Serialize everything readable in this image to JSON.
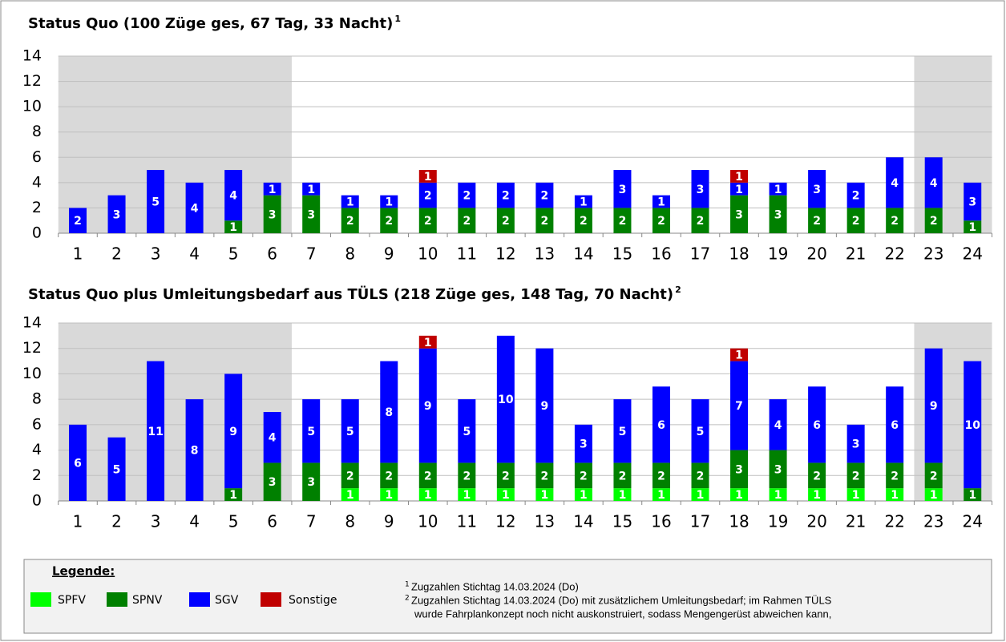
{
  "chart_data": [
    {
      "type": "bar",
      "stacked": true,
      "title": "Status Quo (100 Züge ges, 67 Tag, 33 Nacht)",
      "title_note": "1",
      "categories": [
        "1",
        "2",
        "3",
        "4",
        "5",
        "6",
        "7",
        "8",
        "9",
        "10",
        "11",
        "12",
        "13",
        "14",
        "15",
        "16",
        "17",
        "18",
        "19",
        "20",
        "21",
        "22",
        "23",
        "24"
      ],
      "series": [
        {
          "name": "SPNV",
          "color": "#008000",
          "values": [
            null,
            null,
            null,
            null,
            1,
            3,
            3,
            2,
            2,
            2,
            2,
            2,
            2,
            2,
            2,
            2,
            2,
            3,
            3,
            2,
            2,
            2,
            2,
            1
          ]
        },
        {
          "name": "SGV",
          "color": "#0000ff",
          "values": [
            2,
            3,
            5,
            4,
            4,
            1,
            1,
            1,
            1,
            2,
            2,
            2,
            2,
            1,
            3,
            1,
            3,
            1,
            1,
            3,
            2,
            4,
            4,
            3
          ]
        },
        {
          "name": "Sonstige",
          "color": "#c00000",
          "values": [
            null,
            null,
            null,
            null,
            null,
            null,
            null,
            null,
            null,
            1,
            null,
            null,
            null,
            null,
            null,
            null,
            null,
            1,
            null,
            null,
            null,
            null,
            null,
            null
          ]
        }
      ],
      "ylim": [
        0,
        14
      ],
      "yticks": [
        0,
        2,
        4,
        6,
        8,
        10,
        12,
        14
      ],
      "grid": true
    },
    {
      "type": "bar",
      "stacked": true,
      "title": "Status Quo plus Umleitungsbedarf aus TÜLS (218 Züge ges, 148 Tag, 70 Nacht)",
      "title_note": "2",
      "categories": [
        "1",
        "2",
        "3",
        "4",
        "5",
        "6",
        "7",
        "8",
        "9",
        "10",
        "11",
        "12",
        "13",
        "14",
        "15",
        "16",
        "17",
        "18",
        "19",
        "20",
        "21",
        "22",
        "23",
        "24"
      ],
      "series": [
        {
          "name": "SPFV",
          "color": "#00ff00",
          "values": [
            null,
            null,
            null,
            null,
            null,
            null,
            null,
            1,
            1,
            1,
            1,
            1,
            1,
            1,
            1,
            1,
            1,
            1,
            1,
            1,
            1,
            1,
            1,
            null
          ]
        },
        {
          "name": "SPNV",
          "color": "#008000",
          "values": [
            null,
            null,
            null,
            null,
            1,
            3,
            3,
            2,
            2,
            2,
            2,
            2,
            2,
            2,
            2,
            2,
            2,
            3,
            3,
            2,
            2,
            2,
            2,
            1
          ]
        },
        {
          "name": "SGV",
          "color": "#0000ff",
          "values": [
            6,
            5,
            11,
            8,
            9,
            4,
            5,
            5,
            8,
            9,
            5,
            10,
            9,
            3,
            5,
            6,
            5,
            7,
            4,
            6,
            3,
            6,
            9,
            10
          ]
        },
        {
          "name": "Sonstige",
          "color": "#c00000",
          "values": [
            null,
            null,
            null,
            null,
            null,
            null,
            null,
            null,
            null,
            1,
            null,
            null,
            null,
            null,
            null,
            null,
            null,
            1,
            null,
            null,
            null,
            null,
            null,
            null
          ]
        }
      ],
      "ylim": [
        0,
        14
      ],
      "yticks": [
        0,
        2,
        4,
        6,
        8,
        10,
        12,
        14
      ],
      "grid": true
    }
  ],
  "legend": {
    "title": "Legende:"
  },
  "footnotes": [
    {
      "mark": "1",
      "lines": [
        "Zugzahlen Stichtag 14.03.2024 (Do)"
      ]
    },
    {
      "mark": "2",
      "lines": [
        "Zugzahlen Stichtag 14.03.2024 (Do) mit zusätzlichem Umleitungsbedarf; im Rahmen TÜLS",
        "wurde Fahrplankonzept noch nicht auskonstruiert, sodass Mengengerüst abweichen kann,"
      ]
    }
  ]
}
